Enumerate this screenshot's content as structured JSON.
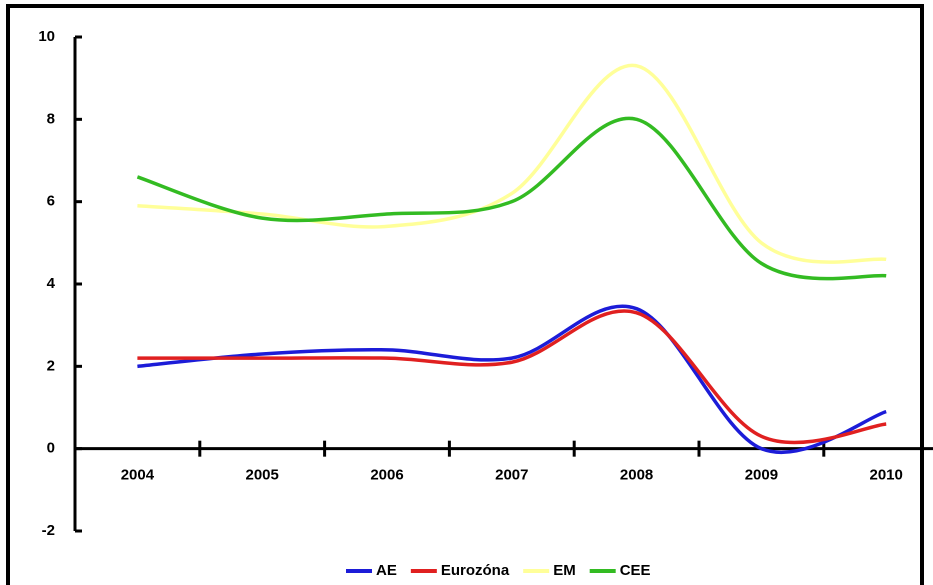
{
  "chart_data": {
    "type": "line",
    "categories": [
      "2004",
      "2005",
      "2006",
      "2007",
      "2008",
      "2009",
      "2010"
    ],
    "series": [
      {
        "name": "AE",
        "color": "#1c1cd8",
        "values": [
          2.0,
          2.3,
          2.4,
          2.2,
          3.4,
          0.0,
          0.9
        ]
      },
      {
        "name": "Eurozóna",
        "color": "#e02020",
        "values": [
          2.2,
          2.2,
          2.2,
          2.1,
          3.3,
          0.3,
          0.6
        ]
      },
      {
        "name": "EM",
        "color": "#ffff99",
        "values": [
          5.9,
          5.7,
          5.4,
          6.2,
          9.3,
          5.0,
          4.6
        ]
      },
      {
        "name": "CEE",
        "color": "#33bb22",
        "values": [
          6.6,
          5.6,
          5.7,
          6.0,
          8.0,
          4.5,
          4.2
        ]
      }
    ],
    "ylim": [
      -2,
      10
    ],
    "yticks": [
      -2,
      0,
      2,
      4,
      6,
      8,
      10
    ],
    "legend": "bottom"
  }
}
